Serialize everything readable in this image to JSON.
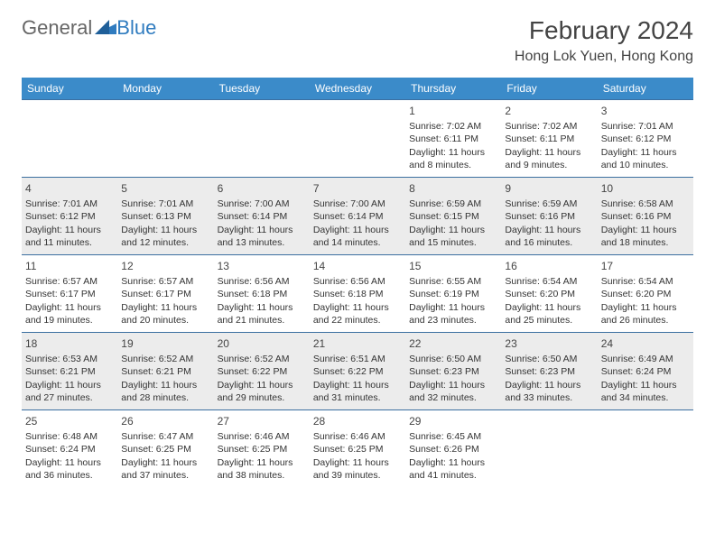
{
  "logo": {
    "text_a": "General",
    "text_b": "Blue"
  },
  "title": "February 2024",
  "location": "Hong Lok Yuen, Hong Kong",
  "colors": {
    "header_bg": "#3b8bc9",
    "header_text": "#ffffff",
    "row_border": "#3b6fa0",
    "alt_row_bg": "#ececec",
    "logo_blue": "#2f7bbf",
    "text": "#333333"
  },
  "fonts": {
    "title_size_pt": 28,
    "location_size_pt": 16,
    "header_size_pt": 12,
    "cell_size_pt": 10.5
  },
  "day_headers": [
    "Sunday",
    "Monday",
    "Tuesday",
    "Wednesday",
    "Thursday",
    "Friday",
    "Saturday"
  ],
  "weeks": [
    [
      null,
      null,
      null,
      null,
      {
        "d": "1",
        "sunrise": "7:02 AM",
        "sunset": "6:11 PM",
        "daylight": "11 hours and 8 minutes."
      },
      {
        "d": "2",
        "sunrise": "7:02 AM",
        "sunset": "6:11 PM",
        "daylight": "11 hours and 9 minutes."
      },
      {
        "d": "3",
        "sunrise": "7:01 AM",
        "sunset": "6:12 PM",
        "daylight": "11 hours and 10 minutes."
      }
    ],
    [
      {
        "d": "4",
        "sunrise": "7:01 AM",
        "sunset": "6:12 PM",
        "daylight": "11 hours and 11 minutes."
      },
      {
        "d": "5",
        "sunrise": "7:01 AM",
        "sunset": "6:13 PM",
        "daylight": "11 hours and 12 minutes."
      },
      {
        "d": "6",
        "sunrise": "7:00 AM",
        "sunset": "6:14 PM",
        "daylight": "11 hours and 13 minutes."
      },
      {
        "d": "7",
        "sunrise": "7:00 AM",
        "sunset": "6:14 PM",
        "daylight": "11 hours and 14 minutes."
      },
      {
        "d": "8",
        "sunrise": "6:59 AM",
        "sunset": "6:15 PM",
        "daylight": "11 hours and 15 minutes."
      },
      {
        "d": "9",
        "sunrise": "6:59 AM",
        "sunset": "6:16 PM",
        "daylight": "11 hours and 16 minutes."
      },
      {
        "d": "10",
        "sunrise": "6:58 AM",
        "sunset": "6:16 PM",
        "daylight": "11 hours and 18 minutes."
      }
    ],
    [
      {
        "d": "11",
        "sunrise": "6:57 AM",
        "sunset": "6:17 PM",
        "daylight": "11 hours and 19 minutes."
      },
      {
        "d": "12",
        "sunrise": "6:57 AM",
        "sunset": "6:17 PM",
        "daylight": "11 hours and 20 minutes."
      },
      {
        "d": "13",
        "sunrise": "6:56 AM",
        "sunset": "6:18 PM",
        "daylight": "11 hours and 21 minutes."
      },
      {
        "d": "14",
        "sunrise": "6:56 AM",
        "sunset": "6:18 PM",
        "daylight": "11 hours and 22 minutes."
      },
      {
        "d": "15",
        "sunrise": "6:55 AM",
        "sunset": "6:19 PM",
        "daylight": "11 hours and 23 minutes."
      },
      {
        "d": "16",
        "sunrise": "6:54 AM",
        "sunset": "6:20 PM",
        "daylight": "11 hours and 25 minutes."
      },
      {
        "d": "17",
        "sunrise": "6:54 AM",
        "sunset": "6:20 PM",
        "daylight": "11 hours and 26 minutes."
      }
    ],
    [
      {
        "d": "18",
        "sunrise": "6:53 AM",
        "sunset": "6:21 PM",
        "daylight": "11 hours and 27 minutes."
      },
      {
        "d": "19",
        "sunrise": "6:52 AM",
        "sunset": "6:21 PM",
        "daylight": "11 hours and 28 minutes."
      },
      {
        "d": "20",
        "sunrise": "6:52 AM",
        "sunset": "6:22 PM",
        "daylight": "11 hours and 29 minutes."
      },
      {
        "d": "21",
        "sunrise": "6:51 AM",
        "sunset": "6:22 PM",
        "daylight": "11 hours and 31 minutes."
      },
      {
        "d": "22",
        "sunrise": "6:50 AM",
        "sunset": "6:23 PM",
        "daylight": "11 hours and 32 minutes."
      },
      {
        "d": "23",
        "sunrise": "6:50 AM",
        "sunset": "6:23 PM",
        "daylight": "11 hours and 33 minutes."
      },
      {
        "d": "24",
        "sunrise": "6:49 AM",
        "sunset": "6:24 PM",
        "daylight": "11 hours and 34 minutes."
      }
    ],
    [
      {
        "d": "25",
        "sunrise": "6:48 AM",
        "sunset": "6:24 PM",
        "daylight": "11 hours and 36 minutes."
      },
      {
        "d": "26",
        "sunrise": "6:47 AM",
        "sunset": "6:25 PM",
        "daylight": "11 hours and 37 minutes."
      },
      {
        "d": "27",
        "sunrise": "6:46 AM",
        "sunset": "6:25 PM",
        "daylight": "11 hours and 38 minutes."
      },
      {
        "d": "28",
        "sunrise": "6:46 AM",
        "sunset": "6:25 PM",
        "daylight": "11 hours and 39 minutes."
      },
      {
        "d": "29",
        "sunrise": "6:45 AM",
        "sunset": "6:26 PM",
        "daylight": "11 hours and 41 minutes."
      },
      null,
      null
    ]
  ],
  "labels": {
    "sunrise": "Sunrise: ",
    "sunset": "Sunset: ",
    "daylight": "Daylight: "
  }
}
